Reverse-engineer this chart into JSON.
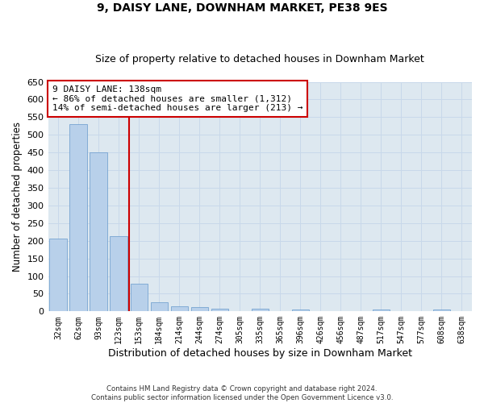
{
  "title": "9, DAISY LANE, DOWNHAM MARKET, PE38 9ES",
  "subtitle": "Size of property relative to detached houses in Downham Market",
  "xlabel": "Distribution of detached houses by size in Downham Market",
  "ylabel": "Number of detached properties",
  "categories": [
    "32sqm",
    "62sqm",
    "93sqm",
    "123sqm",
    "153sqm",
    "184sqm",
    "214sqm",
    "244sqm",
    "274sqm",
    "305sqm",
    "335sqm",
    "365sqm",
    "396sqm",
    "426sqm",
    "456sqm",
    "487sqm",
    "517sqm",
    "547sqm",
    "577sqm",
    "608sqm",
    "638sqm"
  ],
  "values": [
    207,
    530,
    450,
    213,
    78,
    26,
    15,
    12,
    8,
    0,
    8,
    0,
    5,
    0,
    0,
    0,
    5,
    0,
    0,
    5,
    0
  ],
  "bar_color": "#b8d0ea",
  "bar_edge_color": "#6699cc",
  "vline_x_index": 3,
  "vline_color": "#cc0000",
  "annotation_text": "9 DAISY LANE: 138sqm\n← 86% of detached houses are smaller (1,312)\n14% of semi-detached houses are larger (213) →",
  "annotation_box_color": "#ffffff",
  "annotation_box_edge_color": "#cc0000",
  "ylim": [
    0,
    650
  ],
  "yticks": [
    0,
    50,
    100,
    150,
    200,
    250,
    300,
    350,
    400,
    450,
    500,
    550,
    600,
    650
  ],
  "grid_color": "#c8d8ea",
  "background_color": "#dde8f0",
  "footer_text": "Contains HM Land Registry data © Crown copyright and database right 2024.\nContains public sector information licensed under the Open Government Licence v3.0.",
  "title_fontsize": 10,
  "subtitle_fontsize": 9,
  "annotation_fontsize": 8,
  "ylabel_fontsize": 8.5,
  "xlabel_fontsize": 9
}
